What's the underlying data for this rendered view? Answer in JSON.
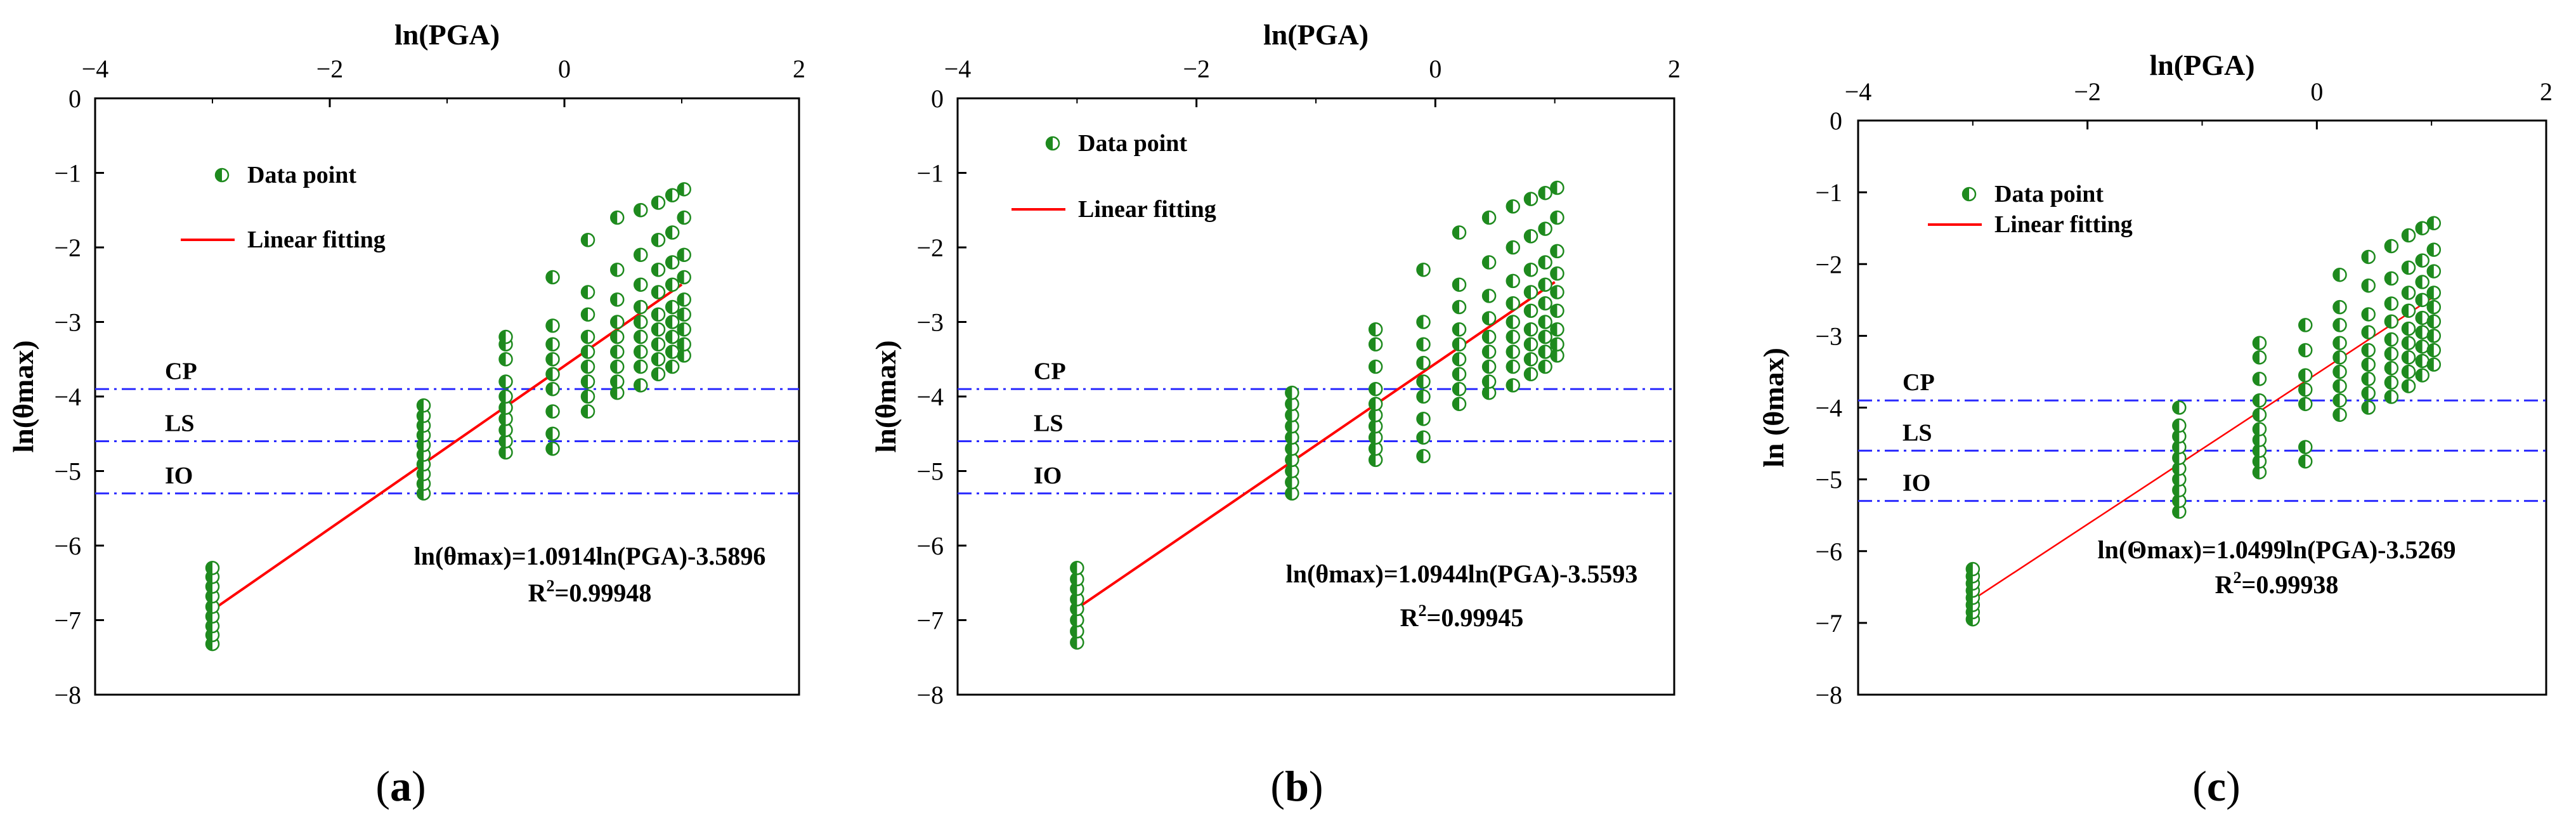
{
  "chart_data": [
    {
      "id": "a",
      "panel_label": "a",
      "type": "scatter",
      "xlabel": "ln(PGA)",
      "ylabel": "ln(θmax)",
      "xlim": [
        -4,
        2
      ],
      "ylim": [
        -8,
        0
      ],
      "xticks": [
        -4,
        -2,
        0,
        2
      ],
      "yticks": [
        0,
        -1,
        -2,
        -3,
        -4,
        -5,
        -6,
        -7,
        -8
      ],
      "x_tick_labels": [
        "−4",
        "−2",
        "0",
        "2"
      ],
      "y_tick_labels": [
        "0",
        "−1",
        "−2",
        "−3",
        "−4",
        "−5",
        "−6",
        "−7",
        "−8"
      ],
      "legend": {
        "position": "top-left",
        "entries": [
          "Data point",
          "Linear fitting"
        ]
      },
      "limit_lines": [
        {
          "name": "CP",
          "y": -3.9
        },
        {
          "name": "LS",
          "y": -4.6
        },
        {
          "name": "IO",
          "y": -5.3
        }
      ],
      "series": [
        {
          "name": "Data point",
          "groups": [
            {
              "x": -3.0,
              "y": [
                -7.32,
                -7.2,
                -7.08,
                -6.95,
                -6.82,
                -6.68,
                -6.55,
                -6.42,
                -6.3
              ]
            },
            {
              "x": -1.2,
              "y": [
                -5.3,
                -5.17,
                -5.04,
                -4.91,
                -4.78,
                -4.65,
                -4.52,
                -4.39,
                -4.26,
                -4.12
              ]
            },
            {
              "x": -0.5,
              "y": [
                -4.75,
                -4.6,
                -4.45,
                -4.3,
                -4.15,
                -4.0,
                -3.8,
                -3.5,
                -3.3,
                -3.2
              ]
            },
            {
              "x": -0.1,
              "y": [
                -4.7,
                -4.5,
                -4.2,
                -3.9,
                -3.7,
                -3.5,
                -3.3,
                -3.05,
                -2.4
              ]
            },
            {
              "x": 0.2,
              "y": [
                -4.2,
                -4.0,
                -3.8,
                -3.6,
                -3.4,
                -3.2,
                -2.9,
                -2.6,
                -1.9
              ]
            },
            {
              "x": 0.45,
              "y": [
                -3.95,
                -3.8,
                -3.6,
                -3.4,
                -3.2,
                -3.0,
                -2.7,
                -2.3,
                -1.6
              ]
            },
            {
              "x": 0.65,
              "y": [
                -3.85,
                -3.6,
                -3.4,
                -3.2,
                -3.0,
                -2.8,
                -2.5,
                -2.1,
                -1.5
              ]
            },
            {
              "x": 0.8,
              "y": [
                -3.7,
                -3.5,
                -3.3,
                -3.1,
                -2.9,
                -2.6,
                -2.3,
                -1.9,
                -1.4
              ]
            },
            {
              "x": 0.92,
              "y": [
                -3.6,
                -3.4,
                -3.2,
                -3.0,
                -2.8,
                -2.5,
                -2.2,
                -1.8,
                -1.3
              ]
            },
            {
              "x": 1.02,
              "y": [
                -3.45,
                -3.3,
                -3.1,
                -2.9,
                -2.7,
                -2.4,
                -2.1,
                -1.6,
                -1.22
              ]
            }
          ]
        },
        {
          "name": "Linear fitting",
          "x": [
            -3.0,
            1.0
          ],
          "y": [
            -6.864,
            -2.498
          ]
        }
      ],
      "annotations": [
        "ln(θmax)=1.0914ln(PGA)-3.5896",
        "R",
        "2",
        "=0.99948"
      ]
    },
    {
      "id": "b",
      "panel_label": "b",
      "type": "scatter",
      "xlabel": "ln(PGA)",
      "ylabel": "ln(θmax)",
      "xlim": [
        -4,
        2
      ],
      "ylim": [
        -8,
        0
      ],
      "xticks": [
        -4,
        -2,
        0,
        2
      ],
      "yticks": [
        0,
        -1,
        -2,
        -3,
        -4,
        -5,
        -6,
        -7,
        -8
      ],
      "x_tick_labels": [
        "−4",
        "−2",
        "0",
        "2"
      ],
      "y_tick_labels": [
        "0",
        "−1",
        "−2",
        "−3",
        "−4",
        "−5",
        "−6",
        "−7",
        "−8"
      ],
      "legend": {
        "position": "top-left",
        "entries": [
          "Data point",
          "Linear fitting"
        ]
      },
      "limit_lines": [
        {
          "name": "CP",
          "y": -3.9
        },
        {
          "name": "LS",
          "y": -4.6
        },
        {
          "name": "IO",
          "y": -5.3
        }
      ],
      "series": [
        {
          "name": "Data point",
          "groups": [
            {
              "x": -3.0,
              "y": [
                -7.3,
                -7.15,
                -7.0,
                -6.85,
                -6.72,
                -6.58,
                -6.45,
                -6.3
              ]
            },
            {
              "x": -1.2,
              "y": [
                -5.3,
                -5.15,
                -5.0,
                -4.85,
                -4.7,
                -4.55,
                -4.4,
                -4.25,
                -4.1,
                -3.95
              ]
            },
            {
              "x": -0.5,
              "y": [
                -4.85,
                -4.7,
                -4.55,
                -4.4,
                -4.25,
                -4.1,
                -3.9,
                -3.6,
                -3.3,
                -3.1
              ]
            },
            {
              "x": -0.1,
              "y": [
                -4.8,
                -4.55,
                -4.3,
                -4.0,
                -3.8,
                -3.55,
                -3.3,
                -3.0,
                -2.3
              ]
            },
            {
              "x": 0.2,
              "y": [
                -4.1,
                -3.9,
                -3.7,
                -3.5,
                -3.3,
                -3.1,
                -2.8,
                -2.5,
                -1.8
              ]
            },
            {
              "x": 0.45,
              "y": [
                -3.95,
                -3.8,
                -3.6,
                -3.4,
                -3.2,
                -2.95,
                -2.65,
                -2.2,
                -1.6
              ]
            },
            {
              "x": 0.65,
              "y": [
                -3.85,
                -3.6,
                -3.4,
                -3.2,
                -3.0,
                -2.75,
                -2.45,
                -2.0,
                -1.45
              ]
            },
            {
              "x": 0.8,
              "y": [
                -3.7,
                -3.5,
                -3.3,
                -3.1,
                -2.85,
                -2.6,
                -2.3,
                -1.85,
                -1.35
              ]
            },
            {
              "x": 0.92,
              "y": [
                -3.6,
                -3.4,
                -3.2,
                -3.0,
                -2.75,
                -2.5,
                -2.2,
                -1.75,
                -1.27
              ]
            },
            {
              "x": 1.02,
              "y": [
                -3.45,
                -3.3,
                -3.1,
                -2.85,
                -2.6,
                -2.35,
                -2.05,
                -1.6,
                -1.2
              ]
            }
          ]
        },
        {
          "name": "Linear fitting",
          "x": [
            -3.0,
            1.0
          ],
          "y": [
            -6.842,
            -2.465
          ]
        }
      ],
      "annotations": [
        "ln(θmax)=1.0944ln(PGA)-3.5593",
        "R",
        "2",
        "=0.99945"
      ]
    },
    {
      "id": "c",
      "panel_label": "c",
      "type": "scatter",
      "xlabel": "ln(PGA)",
      "ylabel": "ln (θmax)",
      "xlim": [
        -4,
        2
      ],
      "ylim": [
        -8,
        0
      ],
      "xticks": [
        -4,
        -2,
        0,
        2
      ],
      "yticks": [
        0,
        -1,
        -2,
        -3,
        -4,
        -5,
        -6,
        -7,
        -8
      ],
      "x_tick_labels": [
        "−4",
        "−2",
        "0",
        "2"
      ],
      "y_tick_labels": [
        "0",
        "−1",
        "−2",
        "−3",
        "−4",
        "−5",
        "−6",
        "−7",
        "−8"
      ],
      "legend": {
        "position": "top-left",
        "entries": [
          "Data point",
          "Linear fitting"
        ]
      },
      "limit_lines": [
        {
          "name": "CP",
          "y": -3.9
        },
        {
          "name": "LS",
          "y": -4.6
        },
        {
          "name": "IO",
          "y": -5.3
        }
      ],
      "series": [
        {
          "name": "Data point",
          "groups": [
            {
              "x": -3.0,
              "y": [
                -6.95,
                -6.85,
                -6.75,
                -6.65,
                -6.55,
                -6.45,
                -6.35,
                -6.25
              ]
            },
            {
              "x": -1.2,
              "y": [
                -5.45,
                -5.3,
                -5.15,
                -5.0,
                -4.85,
                -4.7,
                -4.55,
                -4.4,
                -4.25,
                -4.0
              ]
            },
            {
              "x": -0.5,
              "y": [
                -4.9,
                -4.75,
                -4.6,
                -4.45,
                -4.3,
                -4.1,
                -3.9,
                -3.6,
                -3.3,
                -3.1
              ]
            },
            {
              "x": -0.1,
              "y": [
                -4.75,
                -4.55,
                -3.95,
                -3.75,
                -3.55,
                -3.2,
                -2.85
              ]
            },
            {
              "x": 0.2,
              "y": [
                -4.1,
                -3.9,
                -3.7,
                -3.5,
                -3.3,
                -3.1,
                -2.85,
                -2.6,
                -2.15
              ]
            },
            {
              "x": 0.45,
              "y": [
                -4.0,
                -3.8,
                -3.6,
                -3.4,
                -3.2,
                -2.95,
                -2.7,
                -2.3,
                -1.9
              ]
            },
            {
              "x": 0.65,
              "y": [
                -3.85,
                -3.65,
                -3.45,
                -3.25,
                -3.05,
                -2.8,
                -2.55,
                -2.2,
                -1.75
              ]
            },
            {
              "x": 0.8,
              "y": [
                -3.7,
                -3.5,
                -3.3,
                -3.1,
                -2.9,
                -2.65,
                -2.4,
                -2.05,
                -1.6
              ]
            },
            {
              "x": 0.92,
              "y": [
                -3.55,
                -3.35,
                -3.15,
                -2.95,
                -2.75,
                -2.5,
                -2.25,
                -1.95,
                -1.5
              ]
            },
            {
              "x": 1.02,
              "y": [
                -3.4,
                -3.2,
                -3.0,
                -2.8,
                -2.6,
                -2.4,
                -2.1,
                -1.8,
                -1.43
              ]
            }
          ]
        },
        {
          "name": "Linear fitting",
          "x": [
            -3.0,
            1.0
          ],
          "y": [
            -6.676,
            -2.477
          ]
        }
      ],
      "annotations": [
        "ln(Θmax)=1.0499ln(PGA)-3.5269",
        "R",
        "2",
        "=0.99938"
      ]
    }
  ],
  "colors": {
    "data_point": "#1e8a1e",
    "fit_line": "#ff0000",
    "limit_line": "#2a2aff",
    "axis": "#000000"
  }
}
